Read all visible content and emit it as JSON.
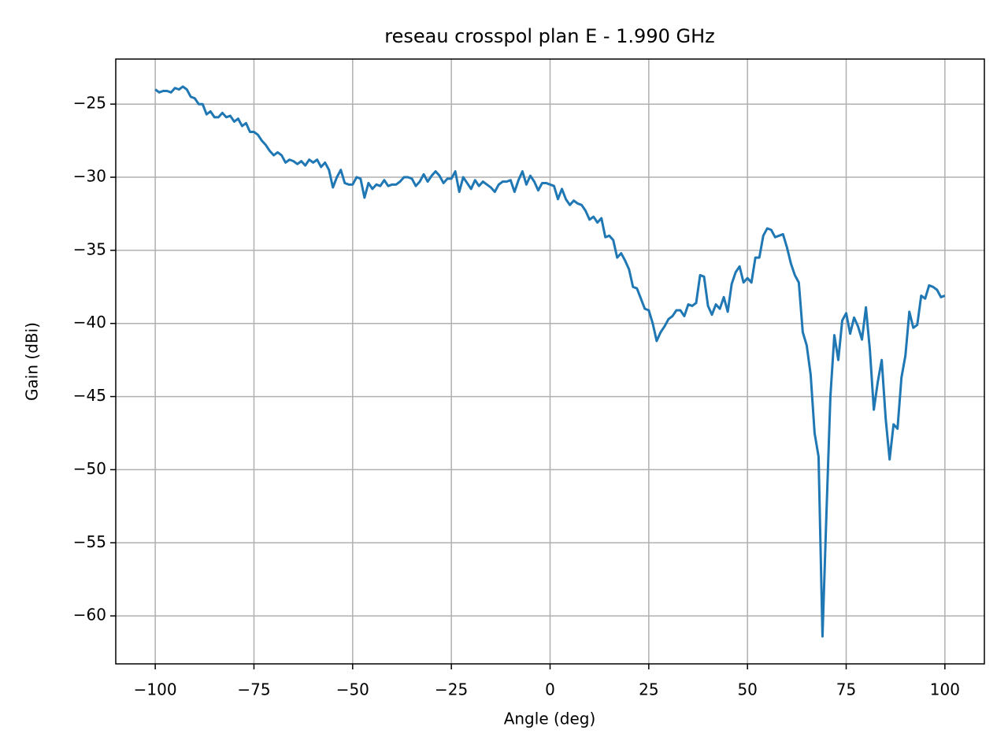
{
  "chart_data": {
    "type": "line",
    "title": "reseau crosspol plan E - 1.990 GHz",
    "xlabel": "Angle (deg)",
    "ylabel": "Gain (dBi)",
    "color": "#1f77b4",
    "grid": true,
    "xlim": [
      -110,
      110
    ],
    "ylim": [
      -63.28,
      -21.92
    ],
    "xticks": [
      {
        "value": -100,
        "label": "−100"
      },
      {
        "value": -75,
        "label": "−75"
      },
      {
        "value": -50,
        "label": "−50"
      },
      {
        "value": -25,
        "label": "−25"
      },
      0,
      25,
      50,
      75,
      100
    ],
    "yticks": [
      {
        "value": -60,
        "label": "−60"
      },
      {
        "value": -55,
        "label": "−55"
      },
      {
        "value": -50,
        "label": "−50"
      },
      {
        "value": -45,
        "label": "−45"
      },
      {
        "value": -40,
        "label": "−40"
      },
      {
        "value": -35,
        "label": "−35"
      },
      {
        "value": -30,
        "label": "−30"
      },
      {
        "value": -25,
        "label": "−25"
      }
    ],
    "x": [
      -100,
      -99,
      -98,
      -97,
      -96,
      -95,
      -94,
      -93,
      -92,
      -91,
      -90,
      -89,
      -88,
      -87,
      -86,
      -85,
      -84,
      -83,
      -82,
      -81,
      -80,
      -79,
      -78,
      -77,
      -76,
      -75,
      -74,
      -73,
      -72,
      -71,
      -70,
      -69,
      -68,
      -67,
      -66,
      -65,
      -64,
      -63,
      -62,
      -61,
      -60,
      -59,
      -58,
      -57,
      -56,
      -55,
      -54,
      -53,
      -52,
      -51,
      -50,
      -49,
      -48,
      -47,
      -46,
      -45,
      -44,
      -43,
      -42,
      -41,
      -40,
      -39,
      -38,
      -37,
      -36,
      -35,
      -34,
      -33,
      -32,
      -31,
      -30,
      -29,
      -28,
      -27,
      -26,
      -25,
      -24,
      -23,
      -22,
      -21,
      -20,
      -19,
      -18,
      -17,
      -16,
      -15,
      -14,
      -13,
      -12,
      -11,
      -10,
      -9,
      -8,
      -7,
      -6,
      -5,
      -4,
      -3,
      -2,
      -1,
      0,
      1,
      2,
      3,
      4,
      5,
      6,
      7,
      8,
      9,
      10,
      11,
      12,
      13,
      14,
      15,
      16,
      17,
      18,
      19,
      20,
      21,
      22,
      23,
      24,
      25,
      26,
      27,
      28,
      29,
      30,
      31,
      32,
      33,
      34,
      35,
      36,
      37,
      38,
      39,
      40,
      41,
      42,
      43,
      44,
      45,
      46,
      47,
      48,
      49,
      50,
      51,
      52,
      53,
      54,
      55,
      56,
      57,
      58,
      59,
      60,
      61,
      62,
      63,
      64,
      65,
      66,
      67,
      68,
      69,
      70,
      71,
      72,
      73,
      74,
      75,
      76,
      77,
      78,
      79,
      80,
      81,
      82,
      83,
      84,
      85,
      86,
      87,
      88,
      89,
      90,
      91,
      92,
      93,
      94,
      95,
      96,
      97,
      98,
      99,
      100
    ],
    "values": [
      -24.0,
      -24.2,
      -24.1,
      -24.1,
      -24.2,
      -23.9,
      -24.0,
      -23.8,
      -24.0,
      -24.5,
      -24.6,
      -25.0,
      -25.0,
      -25.7,
      -25.5,
      -25.9,
      -25.9,
      -25.6,
      -25.9,
      -25.8,
      -26.2,
      -26.0,
      -26.5,
      -26.3,
      -26.9,
      -26.9,
      -27.1,
      -27.5,
      -27.8,
      -28.2,
      -28.5,
      -28.3,
      -28.5,
      -29.0,
      -28.8,
      -28.9,
      -29.1,
      -28.9,
      -29.2,
      -28.8,
      -29.0,
      -28.8,
      -29.3,
      -29.0,
      -29.5,
      -30.7,
      -30.0,
      -29.5,
      -30.4,
      -30.5,
      -30.5,
      -30.0,
      -30.1,
      -31.4,
      -30.4,
      -30.8,
      -30.5,
      -30.6,
      -30.2,
      -30.6,
      -30.5,
      -30.5,
      -30.3,
      -30.0,
      -30.0,
      -30.1,
      -30.6,
      -30.3,
      -29.8,
      -30.3,
      -29.9,
      -29.6,
      -29.9,
      -30.4,
      -30.1,
      -30.1,
      -29.6,
      -31.0,
      -30.0,
      -30.4,
      -30.8,
      -30.2,
      -30.6,
      -30.3,
      -30.5,
      -30.7,
      -31.0,
      -30.5,
      -30.3,
      -30.3,
      -30.2,
      -31.0,
      -30.2,
      -29.6,
      -30.5,
      -29.9,
      -30.3,
      -30.9,
      -30.4,
      -30.4,
      -30.5,
      -30.6,
      -31.5,
      -30.8,
      -31.5,
      -31.9,
      -31.6,
      -31.8,
      -31.9,
      -32.3,
      -32.9,
      -32.7,
      -33.1,
      -32.8,
      -34.1,
      -34.0,
      -34.3,
      -35.5,
      -35.2,
      -35.7,
      -36.3,
      -37.5,
      -37.6,
      -38.3,
      -39.0,
      -39.1,
      -40.0,
      -41.2,
      -40.6,
      -40.2,
      -39.7,
      -39.5,
      -39.1,
      -39.1,
      -39.5,
      -38.7,
      -38.8,
      -38.6,
      -36.7,
      -36.8,
      -38.8,
      -39.4,
      -38.7,
      -39.0,
      -38.2,
      -39.2,
      -37.3,
      -36.5,
      -36.1,
      -37.2,
      -36.9,
      -37.2,
      -35.5,
      -35.5,
      -34.0,
      -33.5,
      -33.6,
      -34.1,
      -34.0,
      -33.9,
      -34.8,
      -35.9,
      -36.7,
      -37.2,
      -40.6,
      -41.5,
      -43.5,
      -47.5,
      -49.1,
      -61.4,
      -53.0,
      -45.0,
      -40.8,
      -42.5,
      -39.8,
      -39.3,
      -40.7,
      -39.6,
      -40.2,
      -41.1,
      -38.9,
      -41.8,
      -45.9,
      -44.0,
      -42.5,
      -46.5,
      -49.3,
      -46.9,
      -47.2,
      -43.7,
      -42.2,
      -39.2,
      -40.3,
      -40.1,
      -38.1,
      -38.3,
      -37.4,
      -37.5,
      -37.7,
      -38.2,
      -38.1
    ]
  }
}
